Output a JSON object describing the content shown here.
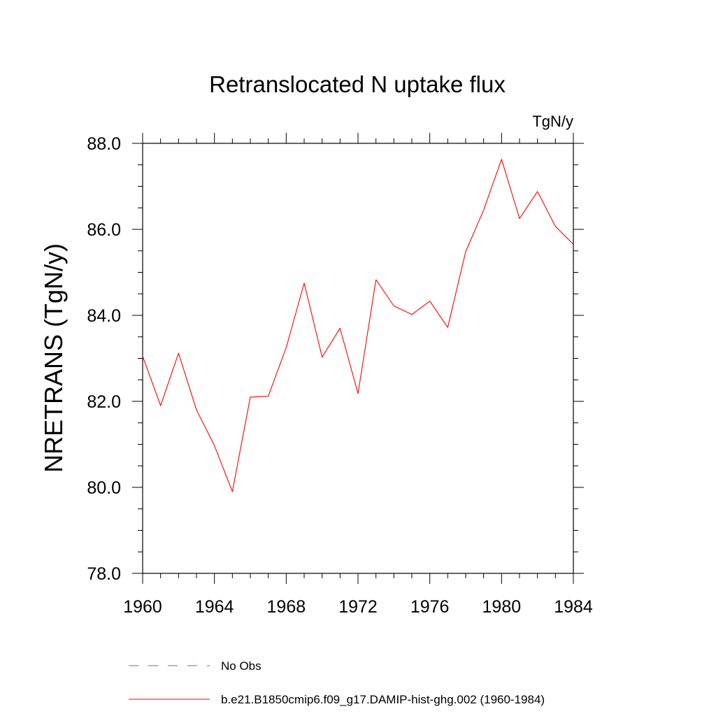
{
  "chart_data": {
    "type": "line",
    "title": "Retranslocated N uptake flux",
    "units_label": "TgN/y",
    "ylabel": "NRETRANS  (TgN/y)",
    "xlabel": "",
    "xlim": [
      1960,
      1984
    ],
    "ylim": [
      78.0,
      88.0
    ],
    "x_ticks": [
      1960,
      1964,
      1968,
      1972,
      1976,
      1980,
      1984
    ],
    "x_tick_labels": [
      "1960",
      "1964",
      "1968",
      "1972",
      "1976",
      "1980",
      "1984"
    ],
    "y_ticks": [
      78.0,
      80.0,
      82.0,
      84.0,
      86.0,
      88.0
    ],
    "y_tick_labels": [
      "78.0",
      "80.0",
      "82.0",
      "84.0",
      "86.0",
      "88.0"
    ],
    "grid": false,
    "legend_position": "bottom",
    "series": [
      {
        "name": "b.e21.B1850cmip6.f09_g17.DAMIP-hist-ghg.002 (1960-1984)",
        "color": "#ff0000",
        "style": "solid",
        "x": [
          1960,
          1961,
          1962,
          1963,
          1964,
          1965,
          1966,
          1967,
          1968,
          1969,
          1970,
          1971,
          1972,
          1973,
          1974,
          1975,
          1976,
          1977,
          1978,
          1979,
          1980,
          1981,
          1982,
          1983,
          1984
        ],
        "y": [
          83.05,
          81.9,
          83.12,
          81.8,
          80.97,
          79.9,
          82.1,
          82.12,
          83.25,
          84.75,
          83.03,
          83.7,
          82.18,
          84.83,
          84.22,
          84.02,
          84.33,
          83.72,
          85.48,
          86.45,
          87.63,
          86.25,
          86.88,
          86.07,
          85.65
        ]
      }
    ],
    "legend": [
      {
        "label": "No Obs",
        "color": "#7060c8",
        "style": "dashed"
      },
      {
        "label": "b.e21.B1850cmip6.f09_g17.DAMIP-hist-ghg.002 (1960-1984)",
        "color": "#ff0000",
        "style": "solid"
      }
    ]
  }
}
